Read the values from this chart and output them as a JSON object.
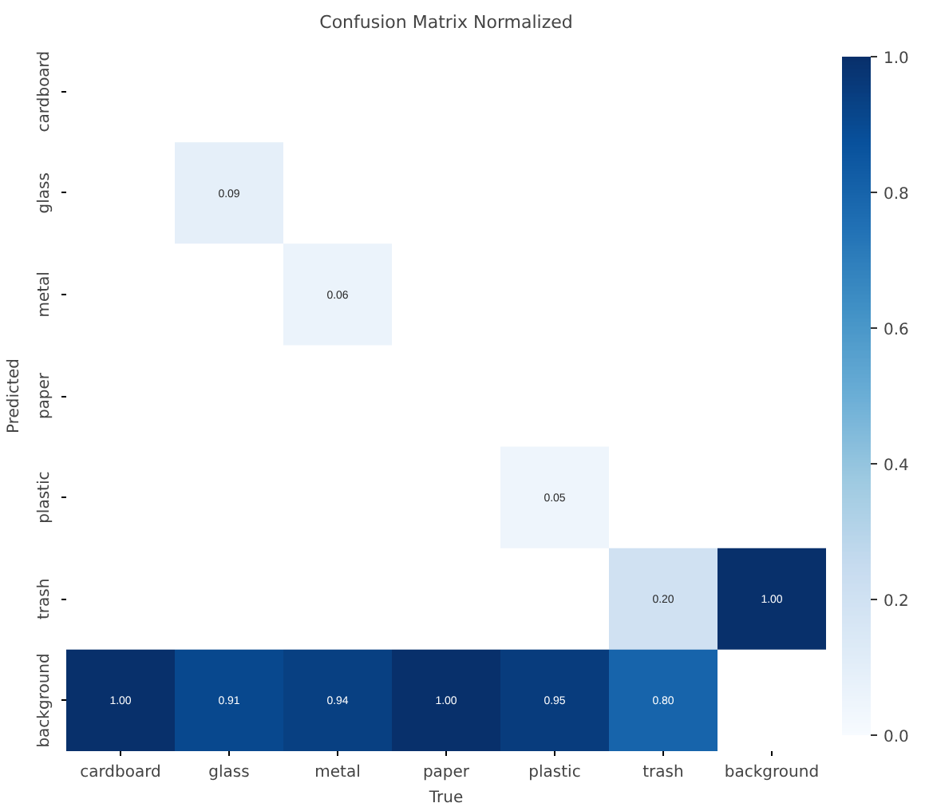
{
  "chart_data": {
    "type": "heatmap",
    "title": "Confusion Matrix Normalized",
    "xlabel": "True",
    "ylabel": "Predicted",
    "categories": [
      "cardboard",
      "glass",
      "metal",
      "paper",
      "plastic",
      "trash",
      "background"
    ],
    "y_categories": [
      "cardboard",
      "glass",
      "metal",
      "paper",
      "plastic",
      "trash",
      "background"
    ],
    "cells": [
      [
        null,
        null,
        null,
        null,
        null,
        null,
        null
      ],
      [
        null,
        0.09,
        null,
        null,
        null,
        null,
        null
      ],
      [
        null,
        null,
        0.06,
        null,
        null,
        null,
        null
      ],
      [
        null,
        null,
        null,
        null,
        null,
        null,
        null
      ],
      [
        null,
        null,
        null,
        null,
        0.05,
        null,
        null
      ],
      [
        null,
        null,
        null,
        null,
        null,
        0.2,
        1.0
      ],
      [
        1.0,
        0.91,
        0.94,
        1.0,
        0.95,
        0.8,
        null
      ]
    ],
    "cell_labels": [
      [
        null,
        null,
        null,
        null,
        null,
        null,
        null
      ],
      [
        null,
        "0.09",
        null,
        null,
        null,
        null,
        null
      ],
      [
        null,
        null,
        "0.06",
        null,
        null,
        null,
        null
      ],
      [
        null,
        null,
        null,
        null,
        null,
        null,
        null
      ],
      [
        null,
        null,
        null,
        null,
        "0.05",
        null,
        null
      ],
      [
        null,
        null,
        null,
        null,
        null,
        "0.20",
        "1.00"
      ],
      [
        "1.00",
        "0.91",
        "0.94",
        "1.00",
        "0.95",
        "0.80",
        null
      ]
    ],
    "clim": [
      0,
      1
    ],
    "cticks": [
      {
        "value": 0,
        "label": "0.0"
      },
      {
        "value": 0.2,
        "label": "0.2"
      },
      {
        "value": 0.4,
        "label": "0.4"
      },
      {
        "value": 0.6,
        "label": "0.6"
      },
      {
        "value": 0.8,
        "label": "0.8"
      },
      {
        "value": 1,
        "label": "1.0"
      }
    ]
  }
}
